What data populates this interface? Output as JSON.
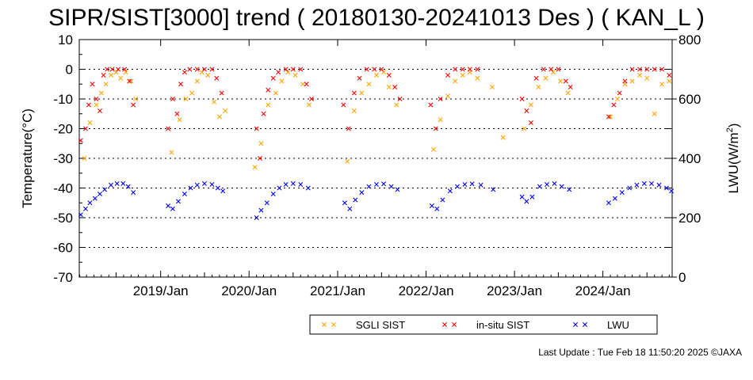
{
  "chart_data": {
    "type": "scatter",
    "title": "SIPR/SIST[3000] trend ( 20180130-20241013 Des ) ( KAN_L )",
    "ylabel": "Temperature(°C)",
    "y2label_main": "LWU(W/m",
    "y2label_sup": "2",
    "y2label_end": ")",
    "ylim": [
      -70,
      10
    ],
    "y2lim": [
      0,
      800
    ],
    "yticks": [
      "10",
      "0",
      "-10",
      "-20",
      "-30",
      "-40",
      "-50",
      "-60",
      "-70"
    ],
    "y2ticks": [
      "800",
      "600",
      "400",
      "200",
      "0"
    ],
    "xlim": [
      "2018-01-30",
      "2024-10-13"
    ],
    "xticks": [
      "2019/Jan",
      "2020/Jan",
      "2021/Jan",
      "2022/Jan",
      "2023/Jan",
      "2024/Jan"
    ],
    "grid": "dotted horizontal at 0, -10, -20, -30, -40, -50, -60",
    "legend_position": "bottom-right",
    "series": [
      {
        "name": "SGLI SIST",
        "color": "#ffa500",
        "marker": "x",
        "axis": "left",
        "points": [
          [
            "2018-02-20",
            -30
          ],
          [
            "2018-03-15",
            -18
          ],
          [
            "2018-04-10",
            -12
          ],
          [
            "2018-05-01",
            -8
          ],
          [
            "2018-05-20",
            -5
          ],
          [
            "2018-06-10",
            -2
          ],
          [
            "2018-07-01",
            -1
          ],
          [
            "2018-07-20",
            -3
          ],
          [
            "2018-08-10",
            -1
          ],
          [
            "2018-09-01",
            -4
          ],
          [
            "2018-09-20",
            -10
          ],
          [
            "2019-02-15",
            -28
          ],
          [
            "2019-03-20",
            -17
          ],
          [
            "2019-04-15",
            -10
          ],
          [
            "2019-05-10",
            -8
          ],
          [
            "2019-06-01",
            -4
          ],
          [
            "2019-06-20",
            -1
          ],
          [
            "2019-07-15",
            -2
          ],
          [
            "2019-08-10",
            -11
          ],
          [
            "2019-09-01",
            -16
          ],
          [
            "2019-09-25",
            -14
          ],
          [
            "2020-01-25",
            -33
          ],
          [
            "2020-02-20",
            -25
          ],
          [
            "2020-03-20",
            -12
          ],
          [
            "2020-04-20",
            -8
          ],
          [
            "2020-05-15",
            -4
          ],
          [
            "2020-06-10",
            -1
          ],
          [
            "2020-07-10",
            -2
          ],
          [
            "2020-08-10",
            -5
          ],
          [
            "2020-09-05",
            -12
          ],
          [
            "2021-02-10",
            -31
          ],
          [
            "2021-03-10",
            -14
          ],
          [
            "2021-04-10",
            -8
          ],
          [
            "2021-05-10",
            -5
          ],
          [
            "2021-06-10",
            -2
          ],
          [
            "2021-07-10",
            -1
          ],
          [
            "2021-08-01",
            -6
          ],
          [
            "2021-09-01",
            -12
          ],
          [
            "2022-02-01",
            -27
          ],
          [
            "2022-03-01",
            -17
          ],
          [
            "2022-04-01",
            -9
          ],
          [
            "2022-05-01",
            -4
          ],
          [
            "2022-06-01",
            -2
          ],
          [
            "2022-07-01",
            -1
          ],
          [
            "2022-08-01",
            -3
          ],
          [
            "2022-10-01",
            -6
          ],
          [
            "2022-11-15",
            -23
          ],
          [
            "2023-02-10",
            -20
          ],
          [
            "2023-03-10",
            -12
          ],
          [
            "2023-04-10",
            -6
          ],
          [
            "2023-05-10",
            -3
          ],
          [
            "2023-06-10",
            -1
          ],
          [
            "2023-07-10",
            -4
          ],
          [
            "2023-08-10",
            -8
          ],
          [
            "2024-02-01",
            -16
          ],
          [
            "2024-03-01",
            -10
          ],
          [
            "2024-04-01",
            -5
          ],
          [
            "2024-05-01",
            -4
          ],
          [
            "2024-06-01",
            -2
          ],
          [
            "2024-07-01",
            -3
          ],
          [
            "2024-08-01",
            -15
          ],
          [
            "2024-09-01",
            -5
          ],
          [
            "2024-10-01",
            -4
          ]
        ]
      },
      {
        "name": "in-situ SIST",
        "color": "#ff0000",
        "marker": "x",
        "axis": "left",
        "points": [
          [
            "2018-02-05",
            -24
          ],
          [
            "2018-02-25",
            -20
          ],
          [
            "2018-03-10",
            -12
          ],
          [
            "2018-03-25",
            -5
          ],
          [
            "2018-04-10",
            -10
          ],
          [
            "2018-04-25",
            -14
          ],
          [
            "2018-05-10",
            -2
          ],
          [
            "2018-05-25",
            0
          ],
          [
            "2018-06-15",
            0
          ],
          [
            "2018-07-10",
            0
          ],
          [
            "2018-08-05",
            0
          ],
          [
            "2018-08-25",
            -4
          ],
          [
            "2018-09-10",
            -12
          ],
          [
            "2019-02-01",
            -20
          ],
          [
            "2019-02-20",
            -10
          ],
          [
            "2019-03-10",
            -15
          ],
          [
            "2019-03-25",
            -5
          ],
          [
            "2019-04-10",
            -1
          ],
          [
            "2019-05-01",
            0
          ],
          [
            "2019-06-01",
            0
          ],
          [
            "2019-07-01",
            0
          ],
          [
            "2019-08-01",
            0
          ],
          [
            "2019-08-20",
            -3
          ],
          [
            "2019-09-10",
            -8
          ],
          [
            "2020-02-01",
            -20
          ],
          [
            "2020-02-15",
            -30
          ],
          [
            "2020-03-01",
            -15
          ],
          [
            "2020-03-20",
            -7
          ],
          [
            "2020-04-10",
            -3
          ],
          [
            "2020-05-01",
            -1
          ],
          [
            "2020-06-01",
            0
          ],
          [
            "2020-07-01",
            0
          ],
          [
            "2020-08-01",
            0
          ],
          [
            "2020-08-25",
            -5
          ],
          [
            "2020-09-15",
            -10
          ],
          [
            "2021-01-25",
            -12
          ],
          [
            "2021-02-15",
            -20
          ],
          [
            "2021-03-10",
            -8
          ],
          [
            "2021-04-01",
            -3
          ],
          [
            "2021-05-01",
            0
          ],
          [
            "2021-06-01",
            0
          ],
          [
            "2021-07-01",
            0
          ],
          [
            "2021-08-01",
            -2
          ],
          [
            "2021-08-25",
            -6
          ],
          [
            "2021-09-15",
            -10
          ],
          [
            "2022-01-20",
            -12
          ],
          [
            "2022-02-10",
            -20
          ],
          [
            "2022-03-01",
            -10
          ],
          [
            "2022-04-01",
            -2
          ],
          [
            "2022-05-01",
            0
          ],
          [
            "2022-06-01",
            0
          ],
          [
            "2022-07-01",
            0
          ],
          [
            "2022-08-01",
            0
          ],
          [
            "2023-02-01",
            -10
          ],
          [
            "2023-02-20",
            -14
          ],
          [
            "2023-03-10",
            -18
          ],
          [
            "2023-04-01",
            -3
          ],
          [
            "2023-05-01",
            0
          ],
          [
            "2023-06-01",
            0
          ],
          [
            "2023-07-01",
            0
          ],
          [
            "2023-08-01",
            -4
          ],
          [
            "2023-08-20",
            -6
          ],
          [
            "2024-01-25",
            -16
          ],
          [
            "2024-02-15",
            -12
          ],
          [
            "2024-03-10",
            -8
          ],
          [
            "2024-04-01",
            -4
          ],
          [
            "2024-05-01",
            0
          ],
          [
            "2024-06-01",
            0
          ],
          [
            "2024-07-01",
            0
          ],
          [
            "2024-08-01",
            0
          ],
          [
            "2024-09-01",
            0
          ],
          [
            "2024-10-01",
            -2
          ]
        ]
      },
      {
        "name": "LWU",
        "color": "#0000ff",
        "marker": "x",
        "axis": "right",
        "points": [
          [
            "2018-02-05",
            210
          ],
          [
            "2018-02-25",
            230
          ],
          [
            "2018-03-15",
            250
          ],
          [
            "2018-04-05",
            265
          ],
          [
            "2018-04-25",
            280
          ],
          [
            "2018-05-15",
            295
          ],
          [
            "2018-06-10",
            310
          ],
          [
            "2018-07-05",
            315
          ],
          [
            "2018-07-30",
            315
          ],
          [
            "2018-08-20",
            305
          ],
          [
            "2018-09-10",
            285
          ],
          [
            "2019-02-01",
            240
          ],
          [
            "2019-02-20",
            230
          ],
          [
            "2019-03-15",
            255
          ],
          [
            "2019-04-10",
            280
          ],
          [
            "2019-05-05",
            300
          ],
          [
            "2019-06-01",
            310
          ],
          [
            "2019-07-01",
            315
          ],
          [
            "2019-08-01",
            312
          ],
          [
            "2019-08-25",
            300
          ],
          [
            "2019-09-15",
            290
          ],
          [
            "2020-02-01",
            200
          ],
          [
            "2020-02-20",
            225
          ],
          [
            "2020-03-15",
            250
          ],
          [
            "2020-04-10",
            280
          ],
          [
            "2020-05-05",
            300
          ],
          [
            "2020-06-01",
            312
          ],
          [
            "2020-07-01",
            315
          ],
          [
            "2020-08-01",
            312
          ],
          [
            "2020-09-01",
            300
          ],
          [
            "2021-01-30",
            250
          ],
          [
            "2021-02-20",
            230
          ],
          [
            "2021-03-15",
            260
          ],
          [
            "2021-04-10",
            285
          ],
          [
            "2021-05-10",
            305
          ],
          [
            "2021-06-10",
            312
          ],
          [
            "2021-07-10",
            314
          ],
          [
            "2021-08-10",
            305
          ],
          [
            "2021-09-05",
            295
          ],
          [
            "2022-01-25",
            240
          ],
          [
            "2022-02-15",
            230
          ],
          [
            "2022-03-10",
            260
          ],
          [
            "2022-04-10",
            290
          ],
          [
            "2022-05-10",
            305
          ],
          [
            "2022-06-10",
            312
          ],
          [
            "2022-07-10",
            314
          ],
          [
            "2022-08-15",
            310
          ],
          [
            "2022-10-05",
            295
          ],
          [
            "2023-02-01",
            270
          ],
          [
            "2023-02-20",
            255
          ],
          [
            "2023-03-15",
            270
          ],
          [
            "2023-04-15",
            305
          ],
          [
            "2023-05-15",
            312
          ],
          [
            "2023-06-15",
            315
          ],
          [
            "2023-07-15",
            305
          ],
          [
            "2023-08-15",
            295
          ],
          [
            "2024-01-25",
            250
          ],
          [
            "2024-02-20",
            265
          ],
          [
            "2024-03-20",
            285
          ],
          [
            "2024-04-20",
            300
          ],
          [
            "2024-05-20",
            310
          ],
          [
            "2024-06-20",
            315
          ],
          [
            "2024-07-20",
            315
          ],
          [
            "2024-08-20",
            310
          ],
          [
            "2024-09-20",
            300
          ],
          [
            "2024-10-10",
            290
          ]
        ]
      }
    ]
  },
  "footer": {
    "text": "Last Update : Tue Feb 18 11:50:20 2025  ©JAXA"
  }
}
